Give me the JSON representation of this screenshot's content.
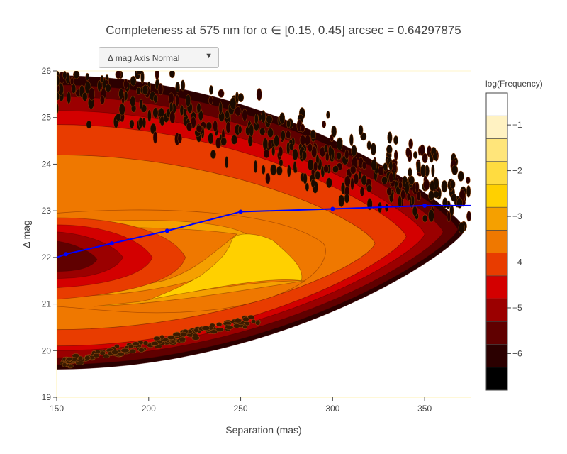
{
  "title": "Completeness at 575 nm for α ∈ [0.15, 0.45] arcsec = 0.64297875",
  "dropdown": {
    "selected": "Δ mag Axis Normal",
    "arrow_icon": "triangle-down-icon"
  },
  "chart_data": {
    "type": "heatmap",
    "subtype": "filled-contour",
    "title": "Completeness at 575 nm for α ∈ [0.15, 0.45] arcsec = 0.64297875",
    "xlabel": "Separation (mas)",
    "ylabel": "Δ mag",
    "xlim": [
      150,
      375
    ],
    "ylim": [
      19,
      26
    ],
    "x_ticks": [
      150,
      200,
      250,
      300,
      350
    ],
    "y_ticks": [
      19,
      20,
      21,
      22,
      23,
      24,
      25,
      26
    ],
    "colorbar": {
      "title": "log(Frequency)",
      "ticks": [
        -1,
        -2,
        -3,
        -4,
        -5,
        -6
      ],
      "range": [
        -6.8,
        -0.3
      ],
      "levels_colors": [
        "#000000",
        "#2b0000",
        "#600000",
        "#9b0000",
        "#d30000",
        "#e83c00",
        "#ef7800",
        "#f5a000",
        "#ffd000",
        "#ffdc40",
        "#ffe57a",
        "#fff2c2",
        "#ffffff"
      ]
    },
    "series": [
      {
        "type": "line",
        "x": [
          150,
          155,
          180,
          210,
          250,
          300,
          350,
          375
        ],
        "y": [
          22.0,
          22.07,
          22.3,
          22.57,
          22.98,
          23.04,
          23.11,
          23.11
        ],
        "markers_x": [
          155,
          180,
          210,
          250,
          300,
          350
        ],
        "color": "#0000ff"
      }
    ],
    "grid": false
  }
}
